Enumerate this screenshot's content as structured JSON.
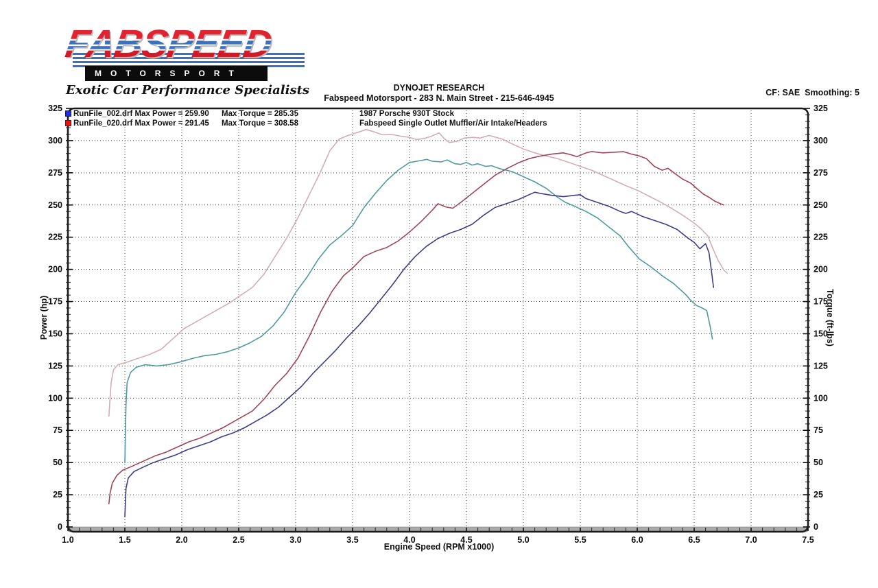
{
  "logo": {
    "brand": "FABSPEED",
    "sub_brand": "MOTORSPORT",
    "tagline": "Exotic Car Performance Specialists"
  },
  "header": {
    "title": "DYNOJET RESEARCH",
    "subtitle": "Fabspeed Motorsport - 283 N. Main Street - 215-646-4945",
    "correction": "CF: SAE  Smoothing: 5"
  },
  "legend": [
    {
      "marker_color": "#1e2ed2",
      "col1": "RunFile_002.drf Max Power = 259.90",
      "col2": "Max Torque = 285.35",
      "col3": "1987 Porsche 930T Stock"
    },
    {
      "marker_color": "#dd1a1a",
      "col1": "RunFile_020.drf Max Power = 291.45",
      "col2": "Max Torque = 308.58",
      "col3": "Fabspeed Single Outlet Muffler/Air Intake/Headers"
    }
  ],
  "chart_data": {
    "type": "line",
    "title": "Dynojet dyno runs - power and torque vs engine speed",
    "xlabel": "Engine Speed (RPM x1000)",
    "ylabel_left": "Power (hp)",
    "ylabel_right": "Torque (ft-lbs)",
    "xlim": [
      1.0,
      7.5
    ],
    "ylim": [
      0,
      325
    ],
    "x_major_step": 0.5,
    "x_minor_step": 0.1,
    "y_major_step": 25,
    "y_minor_step": 5,
    "grid": true,
    "legend_position": "top-left",
    "series": [
      {
        "name": "RunFile_020 Torque (Fabspeed) - max 308.58 ft-lbs",
        "color": "#d6abb5",
        "points": [
          [
            1.36,
            86
          ],
          [
            1.37,
            100
          ],
          [
            1.38,
            112
          ],
          [
            1.4,
            122
          ],
          [
            1.44,
            126
          ],
          [
            1.52,
            128
          ],
          [
            1.62,
            131
          ],
          [
            1.72,
            134
          ],
          [
            1.82,
            138
          ],
          [
            1.92,
            146
          ],
          [
            2.02,
            154
          ],
          [
            2.12,
            159
          ],
          [
            2.22,
            164
          ],
          [
            2.32,
            169
          ],
          [
            2.42,
            174
          ],
          [
            2.52,
            180
          ],
          [
            2.62,
            186
          ],
          [
            2.72,
            196
          ],
          [
            2.82,
            210
          ],
          [
            2.92,
            224
          ],
          [
            3.02,
            240
          ],
          [
            3.12,
            258
          ],
          [
            3.22,
            276
          ],
          [
            3.3,
            292
          ],
          [
            3.38,
            301
          ],
          [
            3.46,
            304
          ],
          [
            3.55,
            306.5
          ],
          [
            3.62,
            308.6
          ],
          [
            3.7,
            306.5
          ],
          [
            3.76,
            304.5
          ],
          [
            3.84,
            304.8
          ],
          [
            3.92,
            303.5
          ],
          [
            4.0,
            302.5
          ],
          [
            4.06,
            300.8
          ],
          [
            4.12,
            301.5
          ],
          [
            4.18,
            303
          ],
          [
            4.26,
            306
          ],
          [
            4.31,
            301
          ],
          [
            4.35,
            298.5
          ],
          [
            4.42,
            299.5
          ],
          [
            4.48,
            302
          ],
          [
            4.56,
            302.5
          ],
          [
            4.62,
            302
          ],
          [
            4.7,
            304
          ],
          [
            4.76,
            302.5
          ],
          [
            4.82,
            301
          ],
          [
            4.9,
            297.5
          ],
          [
            5.0,
            293.5
          ],
          [
            5.1,
            290.5
          ],
          [
            5.2,
            288
          ],
          [
            5.3,
            286
          ],
          [
            5.4,
            283
          ],
          [
            5.5,
            280
          ],
          [
            5.6,
            277
          ],
          [
            5.7,
            273
          ],
          [
            5.8,
            269
          ],
          [
            5.9,
            265
          ],
          [
            6.0,
            261.5
          ],
          [
            6.1,
            257
          ],
          [
            6.2,
            252.5
          ],
          [
            6.3,
            247.5
          ],
          [
            6.4,
            242
          ],
          [
            6.5,
            236
          ],
          [
            6.56,
            231.5
          ],
          [
            6.62,
            226
          ],
          [
            6.66,
            217
          ],
          [
            6.71,
            207
          ],
          [
            6.76,
            199.5
          ],
          [
            6.79,
            197
          ]
        ]
      },
      {
        "name": "RunFile_002 Torque (Stock) - max 285.35 ft-lbs",
        "color": "#4f99a3",
        "points": [
          [
            1.5,
            50
          ],
          [
            1.51,
            95
          ],
          [
            1.52,
            112
          ],
          [
            1.55,
            120
          ],
          [
            1.6,
            124
          ],
          [
            1.68,
            126
          ],
          [
            1.78,
            125
          ],
          [
            1.88,
            126
          ],
          [
            1.98,
            128
          ],
          [
            2.1,
            131
          ],
          [
            2.2,
            133
          ],
          [
            2.3,
            134
          ],
          [
            2.4,
            136
          ],
          [
            2.5,
            139
          ],
          [
            2.6,
            143
          ],
          [
            2.7,
            148
          ],
          [
            2.8,
            156
          ],
          [
            2.9,
            167
          ],
          [
            3.0,
            182
          ],
          [
            3.1,
            194
          ],
          [
            3.2,
            208
          ],
          [
            3.3,
            219
          ],
          [
            3.4,
            226
          ],
          [
            3.5,
            234
          ],
          [
            3.6,
            248
          ],
          [
            3.7,
            259
          ],
          [
            3.8,
            269
          ],
          [
            3.9,
            277
          ],
          [
            4.0,
            283
          ],
          [
            4.1,
            284.5
          ],
          [
            4.15,
            285.4
          ],
          [
            4.2,
            284
          ],
          [
            4.28,
            283.5
          ],
          [
            4.33,
            285
          ],
          [
            4.4,
            282
          ],
          [
            4.45,
            281.5
          ],
          [
            4.5,
            283
          ],
          [
            4.55,
            281
          ],
          [
            4.6,
            282
          ],
          [
            4.67,
            280
          ],
          [
            4.72,
            280.5
          ],
          [
            4.8,
            278
          ],
          [
            4.9,
            276
          ],
          [
            5.0,
            272
          ],
          [
            5.1,
            268
          ],
          [
            5.2,
            263
          ],
          [
            5.3,
            256
          ],
          [
            5.37,
            252
          ],
          [
            5.45,
            249
          ],
          [
            5.55,
            245
          ],
          [
            5.65,
            240
          ],
          [
            5.75,
            233
          ],
          [
            5.85,
            226
          ],
          [
            5.92,
            218
          ],
          [
            5.97,
            213
          ],
          [
            6.02,
            208
          ],
          [
            6.12,
            202
          ],
          [
            6.22,
            195
          ],
          [
            6.32,
            189
          ],
          [
            6.42,
            181
          ],
          [
            6.47,
            176
          ],
          [
            6.52,
            172
          ],
          [
            6.57,
            170
          ],
          [
            6.61,
            168
          ],
          [
            6.64,
            156
          ],
          [
            6.66,
            146
          ]
        ]
      },
      {
        "name": "RunFile_020 Power (Fabspeed) - max 291.45 hp",
        "color": "#a04458",
        "points": [
          [
            1.36,
            18
          ],
          [
            1.37,
            26
          ],
          [
            1.39,
            34
          ],
          [
            1.43,
            40
          ],
          [
            1.48,
            44
          ],
          [
            1.56,
            47
          ],
          [
            1.66,
            51
          ],
          [
            1.76,
            55
          ],
          [
            1.86,
            58
          ],
          [
            1.96,
            62
          ],
          [
            2.06,
            66
          ],
          [
            2.16,
            69
          ],
          [
            2.26,
            73
          ],
          [
            2.36,
            77
          ],
          [
            2.46,
            82
          ],
          [
            2.56,
            87
          ],
          [
            2.62,
            90
          ],
          [
            2.72,
            99
          ],
          [
            2.82,
            110
          ],
          [
            2.92,
            119
          ],
          [
            3.02,
            131
          ],
          [
            3.12,
            148
          ],
          [
            3.22,
            167
          ],
          [
            3.32,
            183
          ],
          [
            3.42,
            195
          ],
          [
            3.5,
            201
          ],
          [
            3.6,
            210
          ],
          [
            3.7,
            214
          ],
          [
            3.8,
            217
          ],
          [
            3.9,
            222
          ],
          [
            4.0,
            229
          ],
          [
            4.1,
            237
          ],
          [
            4.2,
            246
          ],
          [
            4.25,
            251
          ],
          [
            4.32,
            248.5
          ],
          [
            4.38,
            247.5
          ],
          [
            4.45,
            252
          ],
          [
            4.55,
            259
          ],
          [
            4.65,
            266
          ],
          [
            4.75,
            273
          ],
          [
            4.85,
            278
          ],
          [
            4.95,
            282.5
          ],
          [
            5.05,
            286
          ],
          [
            5.15,
            288
          ],
          [
            5.25,
            289.5
          ],
          [
            5.35,
            290.5
          ],
          [
            5.42,
            289
          ],
          [
            5.47,
            287.5
          ],
          [
            5.55,
            290.5
          ],
          [
            5.6,
            291.5
          ],
          [
            5.7,
            290.5
          ],
          [
            5.8,
            291
          ],
          [
            5.88,
            291.4
          ],
          [
            5.95,
            289.5
          ],
          [
            6.02,
            288
          ],
          [
            6.08,
            286
          ],
          [
            6.15,
            280
          ],
          [
            6.22,
            277
          ],
          [
            6.27,
            278.5
          ],
          [
            6.33,
            274.5
          ],
          [
            6.4,
            270
          ],
          [
            6.47,
            267
          ],
          [
            6.52,
            263
          ],
          [
            6.58,
            258.5
          ],
          [
            6.63,
            256
          ],
          [
            6.68,
            253
          ],
          [
            6.73,
            251
          ],
          [
            6.76,
            250
          ]
        ]
      },
      {
        "name": "RunFile_002 Power (Stock) - max 259.90 hp",
        "color": "#3c3c88",
        "points": [
          [
            1.5,
            8
          ],
          [
            1.51,
            30
          ],
          [
            1.53,
            38
          ],
          [
            1.58,
            43
          ],
          [
            1.65,
            46
          ],
          [
            1.75,
            50
          ],
          [
            1.85,
            53
          ],
          [
            1.95,
            56
          ],
          [
            2.05,
            60
          ],
          [
            2.15,
            63
          ],
          [
            2.25,
            66
          ],
          [
            2.35,
            70
          ],
          [
            2.45,
            73
          ],
          [
            2.55,
            77
          ],
          [
            2.65,
            82
          ],
          [
            2.75,
            87
          ],
          [
            2.85,
            93
          ],
          [
            2.95,
            101
          ],
          [
            3.05,
            109
          ],
          [
            3.15,
            119
          ],
          [
            3.25,
            128
          ],
          [
            3.35,
            137
          ],
          [
            3.45,
            147
          ],
          [
            3.55,
            156
          ],
          [
            3.65,
            166
          ],
          [
            3.75,
            177
          ],
          [
            3.85,
            188
          ],
          [
            3.95,
            200
          ],
          [
            4.05,
            210
          ],
          [
            4.15,
            218
          ],
          [
            4.25,
            224
          ],
          [
            4.35,
            228
          ],
          [
            4.45,
            231
          ],
          [
            4.55,
            235
          ],
          [
            4.65,
            242
          ],
          [
            4.75,
            248
          ],
          [
            4.85,
            251
          ],
          [
            4.95,
            254
          ],
          [
            5.05,
            258
          ],
          [
            5.1,
            259.9
          ],
          [
            5.15,
            259
          ],
          [
            5.25,
            257.5
          ],
          [
            5.35,
            256.5
          ],
          [
            5.45,
            257.5
          ],
          [
            5.5,
            258
          ],
          [
            5.55,
            255
          ],
          [
            5.65,
            252
          ],
          [
            5.75,
            249
          ],
          [
            5.85,
            245
          ],
          [
            5.9,
            243.5
          ],
          [
            5.95,
            245
          ],
          [
            6.05,
            241
          ],
          [
            6.15,
            238
          ],
          [
            6.25,
            235
          ],
          [
            6.35,
            231
          ],
          [
            6.45,
            224
          ],
          [
            6.5,
            221
          ],
          [
            6.55,
            216
          ],
          [
            6.6,
            220
          ],
          [
            6.63,
            213
          ],
          [
            6.65,
            200
          ],
          [
            6.67,
            186
          ]
        ]
      }
    ]
  }
}
